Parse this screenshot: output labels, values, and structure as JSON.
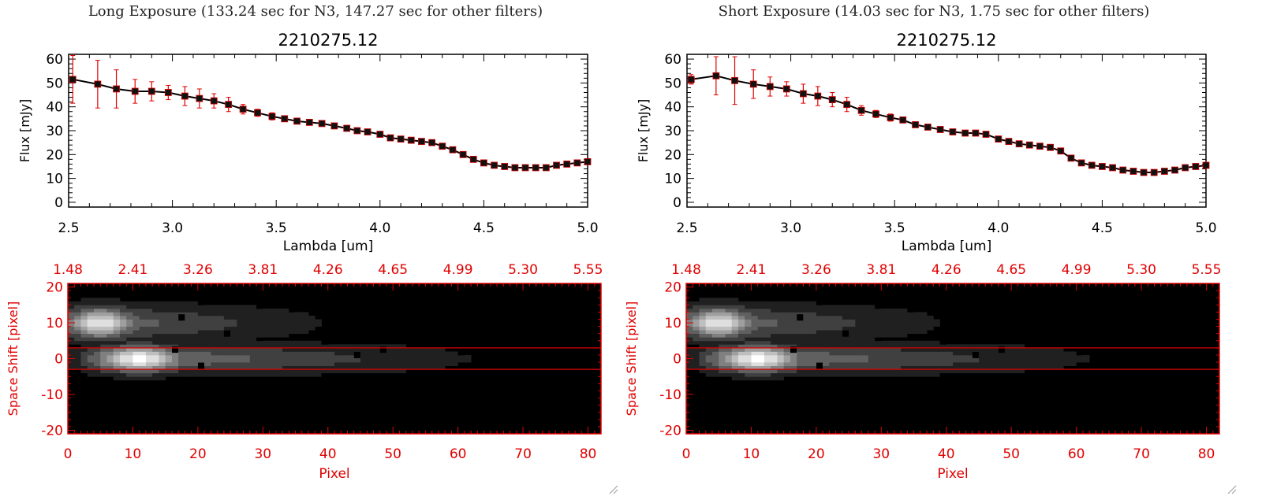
{
  "panels": [
    {
      "title": "Long Exposure (133.24 sec for N3, 147.27 sec for other filters)",
      "spectrum": {
        "title": "2210275.12",
        "xlabel": "Lambda [um]",
        "ylabel": "Flux [mJy]",
        "xlim": [
          2.5,
          5.0
        ],
        "ylim": [
          -2,
          62
        ],
        "xticks": [
          "2.5",
          "3.0",
          "3.5",
          "4.0",
          "4.5",
          "5.0"
        ],
        "yticks": [
          "0",
          "10",
          "20",
          "30",
          "40",
          "50",
          "60"
        ]
      },
      "image": {
        "xlabel": "Pixel",
        "ylabel": "Space Shift [pixel]",
        "xticks": [
          "0",
          "10",
          "20",
          "30",
          "40",
          "50",
          "60",
          "70",
          "80"
        ],
        "yticks": [
          "-20",
          "-10",
          "0",
          "10",
          "20"
        ],
        "top_ticks": [
          "1.48",
          "2.41",
          "3.26",
          "3.81",
          "4.26",
          "4.65",
          "4.99",
          "5.30",
          "5.55"
        ]
      }
    },
    {
      "title": "Short Exposure (14.03 sec for N3, 1.75 sec for other filters)",
      "spectrum": {
        "title": "2210275.12",
        "xlabel": "Lambda [um]",
        "ylabel": "Flux [mJy]",
        "xlim": [
          2.5,
          5.0
        ],
        "ylim": [
          -2,
          62
        ],
        "xticks": [
          "2.5",
          "3.0",
          "3.5",
          "4.0",
          "4.5",
          "5.0"
        ],
        "yticks": [
          "0",
          "10",
          "20",
          "30",
          "40",
          "50",
          "60"
        ]
      },
      "image": {
        "xlabel": "Pixel",
        "ylabel": "Space Shift [pixel]",
        "xticks": [
          "0",
          "10",
          "20",
          "30",
          "40",
          "50",
          "60",
          "70",
          "80"
        ],
        "yticks": [
          "-20",
          "-10",
          "0",
          "10",
          "20"
        ],
        "top_ticks": [
          "1.48",
          "2.41",
          "3.26",
          "3.81",
          "4.26",
          "4.65",
          "4.99",
          "5.30",
          "5.55"
        ]
      }
    }
  ],
  "chart_data": [
    {
      "type": "line",
      "title": "2210275.12",
      "xlabel": "Lambda [um]",
      "ylabel": "Flux [mJy]",
      "xlim": [
        2.5,
        5.0
      ],
      "ylim": [
        -2,
        62
      ],
      "series": [
        {
          "x": [
            2.52,
            2.64,
            2.73,
            2.82,
            2.9,
            2.98,
            3.06,
            3.13,
            3.2,
            3.27,
            3.34,
            3.41,
            3.48,
            3.54,
            3.6,
            3.66,
            3.72,
            3.78,
            3.84,
            3.89,
            3.94,
            4.0,
            4.05,
            4.1,
            4.15,
            4.2,
            4.25,
            4.3,
            4.35,
            4.4,
            4.45,
            4.5,
            4.55,
            4.6,
            4.65,
            4.7,
            4.75,
            4.8,
            4.85,
            4.9,
            4.95,
            5.0
          ],
          "y": [
            51.5,
            49.5,
            47.5,
            46.5,
            46.5,
            46.0,
            44.5,
            43.5,
            42.5,
            41.0,
            39.0,
            37.5,
            36.0,
            35.0,
            34.0,
            33.5,
            33.0,
            32.0,
            31.0,
            30.0,
            29.5,
            28.5,
            27.0,
            26.5,
            26.0,
            25.5,
            25.0,
            23.5,
            22.0,
            20.0,
            18.0,
            16.5,
            15.5,
            15.0,
            14.5,
            14.5,
            14.5,
            14.5,
            15.5,
            16.0,
            16.5,
            17.0
          ],
          "err": [
            10,
            10,
            8,
            5,
            4,
            3,
            4,
            4,
            3,
            3,
            2,
            1.5,
            1.5,
            1,
            1,
            1,
            1,
            1,
            1,
            1,
            1,
            1,
            1,
            1,
            1,
            1,
            1,
            1,
            1,
            1,
            1,
            1,
            1,
            1,
            1,
            1,
            1,
            1,
            1,
            1,
            1,
            1
          ]
        }
      ]
    },
    {
      "type": "line",
      "title": "2210275.12",
      "xlabel": "Lambda [um]",
      "ylabel": "Flux [mJy]",
      "xlim": [
        2.5,
        5.0
      ],
      "ylim": [
        -2,
        62
      ],
      "series": [
        {
          "x": [
            2.52,
            2.64,
            2.73,
            2.82,
            2.9,
            2.98,
            3.06,
            3.13,
            3.2,
            3.27,
            3.34,
            3.41,
            3.48,
            3.54,
            3.6,
            3.66,
            3.72,
            3.78,
            3.84,
            3.89,
            3.94,
            4.0,
            4.05,
            4.1,
            4.15,
            4.2,
            4.25,
            4.3,
            4.35,
            4.4,
            4.45,
            4.5,
            4.55,
            4.6,
            4.65,
            4.7,
            4.75,
            4.8,
            4.85,
            4.9,
            4.95,
            5.0
          ],
          "y": [
            51.5,
            53.0,
            51.0,
            49.5,
            48.5,
            47.5,
            45.5,
            44.5,
            43.0,
            41.0,
            38.5,
            37.0,
            35.5,
            34.5,
            32.5,
            31.5,
            30.5,
            29.5,
            29.0,
            29.0,
            28.5,
            26.5,
            25.5,
            24.5,
            24.0,
            23.5,
            23.0,
            21.5,
            18.5,
            16.5,
            15.5,
            15.0,
            14.5,
            13.5,
            13.0,
            12.5,
            12.5,
            13.0,
            13.5,
            14.5,
            15.0,
            15.5
          ],
          "err": [
            2,
            8,
            10,
            6,
            4,
            3,
            4,
            4,
            3,
            3,
            2,
            1.5,
            1.5,
            1,
            1,
            1,
            1,
            1,
            1,
            1,
            1,
            1,
            1,
            1,
            1,
            1,
            1,
            1,
            1,
            1,
            1,
            1,
            1,
            1,
            1,
            1,
            1,
            1,
            1,
            1,
            1,
            1
          ]
        }
      ]
    },
    {
      "type": "heatmap",
      "xlabel": "Pixel",
      "ylabel": "Space Shift [pixel]",
      "xlim": [
        0,
        82
      ],
      "ylim": [
        -21,
        21
      ],
      "aperture_lines_y": [
        3,
        -3
      ],
      "top_axis_ticks": [
        "1.48",
        "2.41",
        "3.26",
        "3.81",
        "4.26",
        "4.65",
        "4.99",
        "5.30",
        "5.55"
      ],
      "blobs": [
        {
          "x": 5,
          "y": 10,
          "sx": 4,
          "sy": 3,
          "peak": 0.9,
          "tail_to": 45
        },
        {
          "x": 11,
          "y": 0,
          "sx": 5,
          "sy": 2.5,
          "peak": 1.0,
          "tail_to": 70
        }
      ],
      "bad_pixels": [
        [
          17.5,
          11.5
        ],
        [
          24.5,
          7
        ],
        [
          16.5,
          2.5
        ],
        [
          20.5,
          -2
        ],
        [
          44.5,
          1
        ],
        [
          48.5,
          2.5
        ]
      ]
    },
    {
      "type": "heatmap",
      "xlabel": "Pixel",
      "ylabel": "Space Shift [pixel]",
      "xlim": [
        0,
        82
      ],
      "ylim": [
        -21,
        21
      ],
      "aperture_lines_y": [
        3,
        -3
      ],
      "top_axis_ticks": [
        "1.48",
        "2.41",
        "3.26",
        "3.81",
        "4.26",
        "4.65",
        "4.99",
        "5.30",
        "5.55"
      ],
      "blobs": [
        {
          "x": 5,
          "y": 10,
          "sx": 4,
          "sy": 3,
          "peak": 0.9,
          "tail_to": 45
        },
        {
          "x": 11,
          "y": 0,
          "sx": 5,
          "sy": 2.5,
          "peak": 1.0,
          "tail_to": 70
        }
      ],
      "bad_pixels": [
        [
          17.5,
          11.5
        ],
        [
          24.5,
          7
        ],
        [
          16.5,
          2.5
        ],
        [
          20.5,
          -2
        ],
        [
          44.5,
          1
        ],
        [
          48.5,
          2.5
        ]
      ]
    }
  ]
}
